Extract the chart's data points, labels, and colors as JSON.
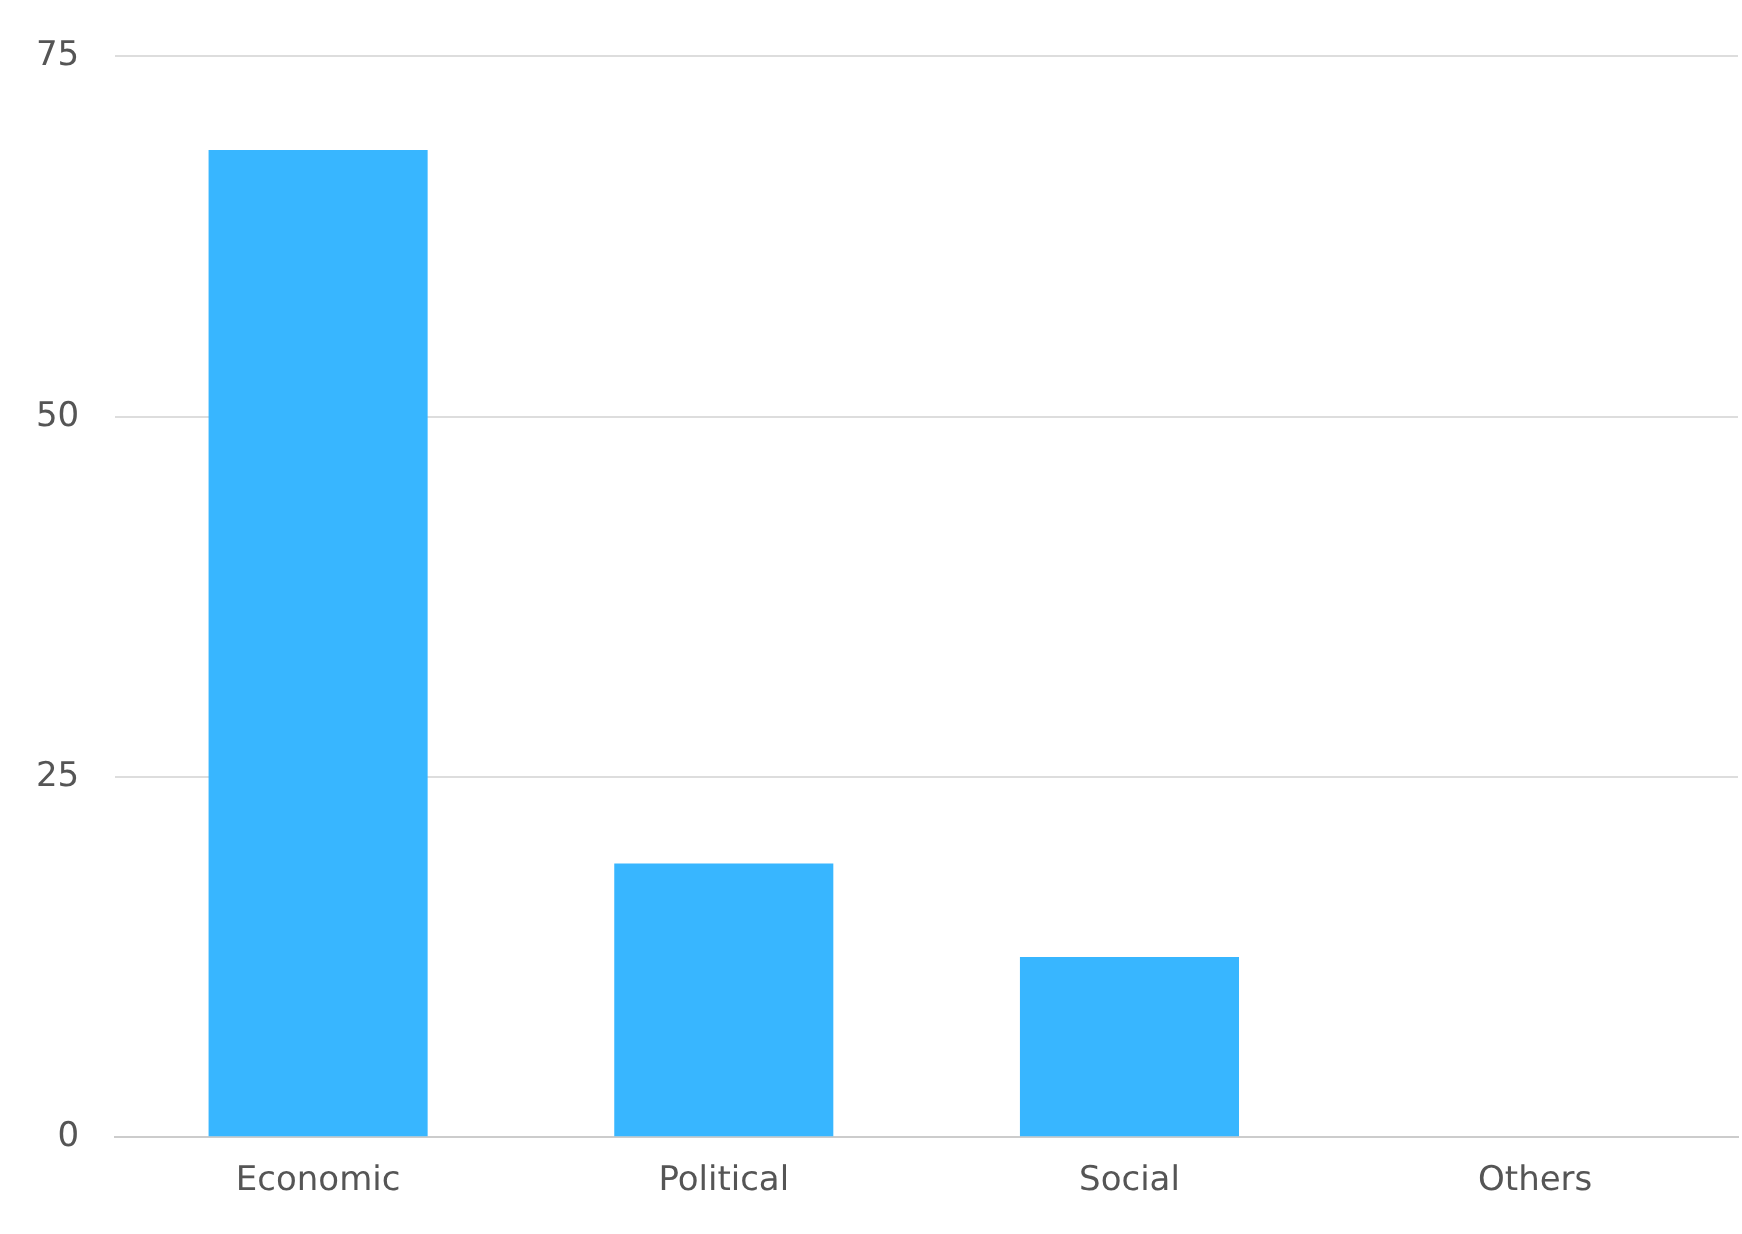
{
  "chart_data": {
    "type": "bar",
    "categories": [
      "Economic",
      "Political",
      "Social",
      "Others"
    ],
    "values": [
      68.5,
      19,
      12.5,
      0
    ],
    "color": "#38b6ff",
    "ylim": [
      0,
      75
    ],
    "yticks": [
      0,
      25,
      50,
      75
    ],
    "grid": "y"
  }
}
